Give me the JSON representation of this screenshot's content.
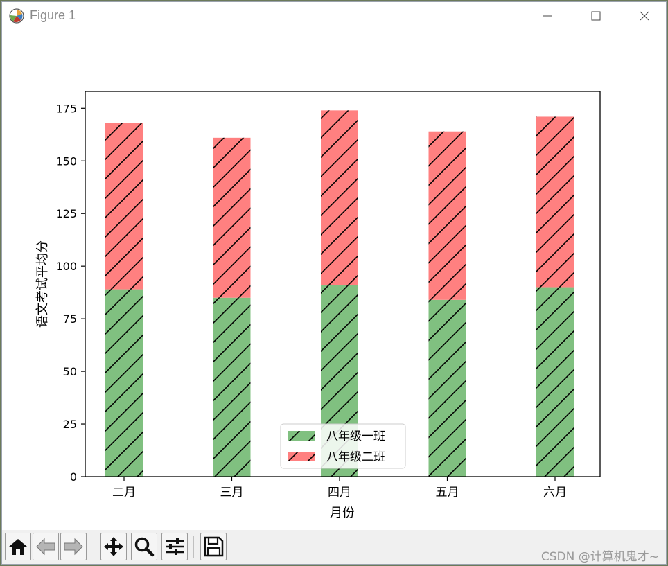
{
  "window": {
    "title": "Figure 1",
    "minimize_icon": "minimize-icon",
    "maximize_icon": "maximize-icon",
    "close_icon": "close-icon"
  },
  "toolbar": {
    "buttons": [
      {
        "name": "home-button",
        "icon": "home-icon"
      },
      {
        "name": "back-button",
        "icon": "arrow-left-icon"
      },
      {
        "name": "forward-button",
        "icon": "arrow-right-icon"
      },
      {
        "name": "pan-button",
        "icon": "move-icon"
      },
      {
        "name": "zoom-button",
        "icon": "magnifier-icon"
      },
      {
        "name": "configure-subplots-button",
        "icon": "sliders-icon"
      },
      {
        "name": "save-button",
        "icon": "floppy-disk-icon"
      }
    ],
    "watermark": "CSDN @计算机鬼才~"
  },
  "chart_data": {
    "type": "bar",
    "stacked": true,
    "categories": [
      "二月",
      "三月",
      "四月",
      "五月",
      "六月"
    ],
    "series": [
      {
        "name": "八年级一班",
        "values": [
          89,
          85,
          91,
          84,
          90
        ],
        "color": "#80c080",
        "hatch": "/"
      },
      {
        "name": "八年级二班",
        "values": [
          79,
          76,
          83,
          80,
          81
        ],
        "color": "#ff8080",
        "hatch": "/"
      }
    ],
    "xlabel": "月份",
    "ylabel": "语文考试平均分",
    "ylim": [
      0,
      183
    ],
    "yticks": [
      0,
      25,
      50,
      75,
      100,
      125,
      150,
      175
    ],
    "legend_position": "lower center",
    "grid": false
  }
}
